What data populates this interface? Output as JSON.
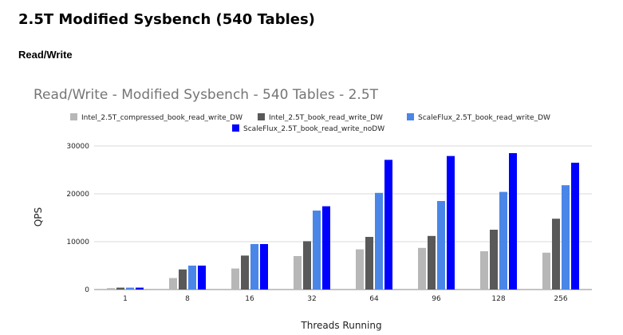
{
  "page": {
    "heading": "2.5T Modified Sysbench (540 Tables)",
    "section": "Read/Write"
  },
  "chart_data": {
    "type": "bar",
    "title": "Read/Write - Modified Sysbench - 540 Tables - 2.5T",
    "xlabel": "Threads Running",
    "ylabel": "QPS",
    "categories": [
      "1",
      "8",
      "16",
      "32",
      "64",
      "96",
      "128",
      "256"
    ],
    "ylim": [
      0,
      30000
    ],
    "yticks": [
      0,
      10000,
      20000,
      30000
    ],
    "grid": true,
    "legend_position": "top",
    "series": [
      {
        "name": "Intel_2.5T_compressed_book_read_write_DW",
        "color": "#b7b7b7",
        "values": [
          300,
          2400,
          4400,
          7000,
          8400,
          8700,
          8000,
          7700
        ]
      },
      {
        "name": "Intel_2.5T_book_read_write_DW",
        "color": "#595959",
        "values": [
          400,
          4200,
          7100,
          10100,
          11000,
          11200,
          12500,
          14800
        ]
      },
      {
        "name": "ScaleFlux_2.5T_book_read_write_DW",
        "color": "#4a86e8",
        "values": [
          400,
          5000,
          9500,
          16500,
          20200,
          18500,
          20400,
          21800
        ]
      },
      {
        "name": "ScaleFlux_2.5T_book_read_write_noDW",
        "color": "#0000ff",
        "values": [
          400,
          5000,
          9500,
          17400,
          27100,
          27900,
          28500,
          26500
        ]
      }
    ]
  }
}
